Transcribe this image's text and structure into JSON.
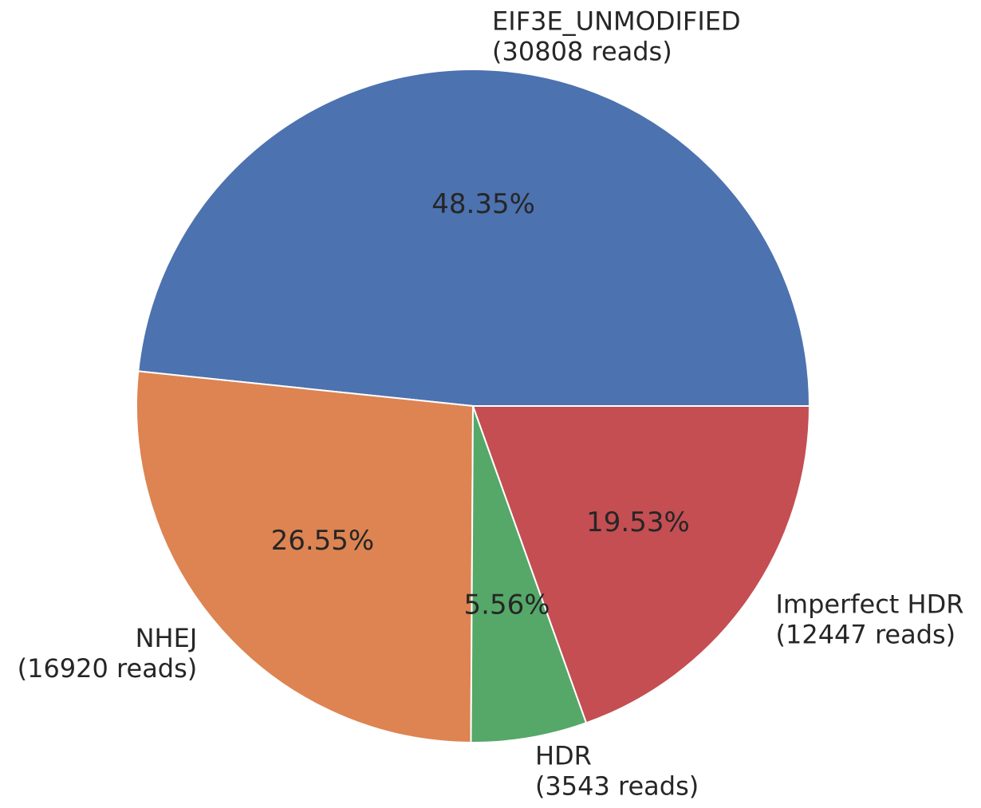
{
  "chart_data": {
    "type": "pie",
    "title": "",
    "slices": [
      {
        "label": "EIF3E_UNMODIFIED",
        "reads_label": "(30808 reads)",
        "value": 30808,
        "percent_label": "48.35%",
        "color": "#4c72b0"
      },
      {
        "label": "NHEJ",
        "reads_label": "(16920 reads)",
        "value": 16920,
        "percent_label": "26.55%",
        "color": "#dd8452"
      },
      {
        "label": "HDR",
        "reads_label": "(3543 reads)",
        "value": 3543,
        "percent_label": "5.56%",
        "color": "#55a868"
      },
      {
        "label": "Imperfect HDR",
        "reads_label": "(12447 reads)",
        "value": 12447,
        "percent_label": "19.53%",
        "color": "#c44e52"
      }
    ],
    "start_angle_deg": 0,
    "direction": "counterclockwise",
    "legend": "none"
  }
}
